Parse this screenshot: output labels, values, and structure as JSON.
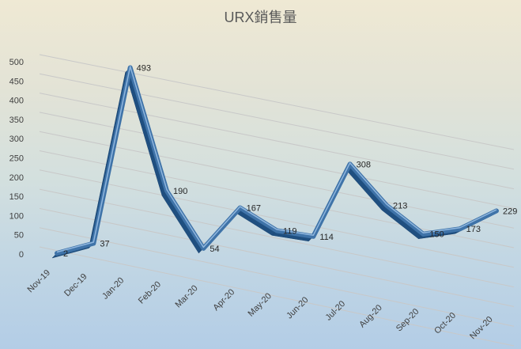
{
  "chart_data": {
    "type": "line",
    "title": "URX銷售量",
    "categories": [
      "Nov-19",
      "Dec-19",
      "Jan-20",
      "Feb-20",
      "Mar-20",
      "Apr-20",
      "May-20",
      "Jun-20",
      "Jul-20",
      "Aug-20",
      "Sep-20",
      "Oct-20",
      "Nov-20"
    ],
    "series": [
      {
        "values": [
          2,
          37,
          493,
          190,
          54,
          167,
          119,
          114,
          308,
          213,
          150,
          173,
          229
        ]
      }
    ],
    "y_ticks": [
      "0",
      "50",
      "100",
      "150",
      "200",
      "250",
      "300",
      "350",
      "400",
      "450",
      "500"
    ],
    "ylim": [
      0,
      500
    ],
    "grid": true,
    "legend": "none",
    "line_color": "#3f73a8",
    "style": "3d-line"
  }
}
